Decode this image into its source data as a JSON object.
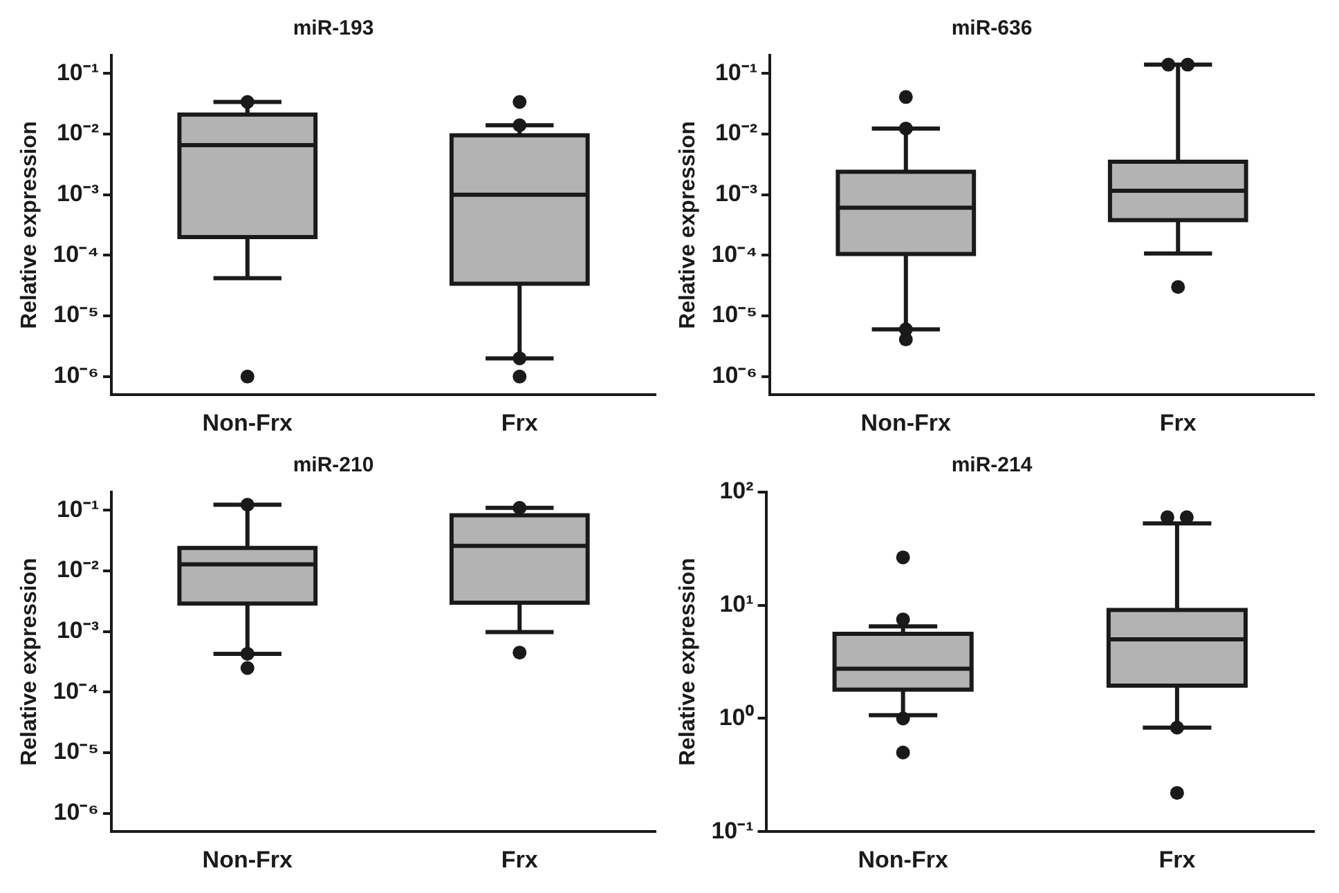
{
  "chart_data": [
    {
      "type": "box",
      "title": "miR-193",
      "ylabel": "Relative expression",
      "categories": [
        "Non-Frx",
        "Frx"
      ],
      "color": "#b3b3b3",
      "log": true,
      "ylim": [
        5e-07,
        0.2
      ],
      "yticks": [
        {
          "value": 0.1,
          "label": "10⁻¹"
        },
        {
          "value": 0.01,
          "label": "10⁻²"
        },
        {
          "value": 0.001,
          "label": "10⁻³"
        },
        {
          "value": 0.0001,
          "label": "10⁻⁴"
        },
        {
          "value": 1e-05,
          "label": "10⁻⁵"
        },
        {
          "value": 1e-06,
          "label": "10⁻⁶"
        }
      ],
      "boxes": [
        {
          "low": 4.2e-05,
          "q1": 0.0002,
          "median": 0.0066,
          "q3": 0.021,
          "high": 0.034,
          "outliers": [
            0.034,
            1e-06
          ]
        },
        {
          "low": 2e-06,
          "q1": 3.4e-05,
          "median": 0.001,
          "q3": 0.0096,
          "high": 0.014,
          "outliers": [
            0.034,
            0.014,
            2e-06,
            1e-06
          ]
        }
      ]
    },
    {
      "type": "box",
      "title": "miR-636",
      "ylabel": "Relative expression",
      "categories": [
        "Non-Frx",
        "Frx"
      ],
      "color": "#b3b3b3",
      "log": true,
      "ylim": [
        5e-07,
        0.2
      ],
      "yticks": [
        {
          "value": 0.1,
          "label": "10⁻¹"
        },
        {
          "value": 0.01,
          "label": "10⁻²"
        },
        {
          "value": 0.001,
          "label": "10⁻³"
        },
        {
          "value": 0.0001,
          "label": "10⁻⁴"
        },
        {
          "value": 1e-05,
          "label": "10⁻⁵"
        },
        {
          "value": 1e-06,
          "label": "10⁻⁶"
        }
      ],
      "boxes": [
        {
          "low": 6e-06,
          "q1": 0.000105,
          "median": 0.00061,
          "q3": 0.0024,
          "high": 0.0124,
          "outliers": [
            0.041,
            0.0124,
            6e-06,
            4.1e-06
          ]
        },
        {
          "low": 0.000107,
          "q1": 0.00038,
          "median": 0.00116,
          "q3": 0.0035,
          "high": 0.14,
          "outliers": [
            0.14,
            0.14,
            3e-05
          ]
        }
      ]
    },
    {
      "type": "box",
      "title": "miR-210",
      "ylabel": "Relative expression",
      "categories": [
        "Non-Frx",
        "Frx"
      ],
      "color": "#b3b3b3",
      "log": true,
      "ylim": [
        5e-07,
        0.2
      ],
      "yticks": [
        {
          "value": 0.1,
          "label": "10⁻¹"
        },
        {
          "value": 0.01,
          "label": "10⁻²"
        },
        {
          "value": 0.001,
          "label": "10⁻³"
        },
        {
          "value": 0.0001,
          "label": "10⁻⁴"
        },
        {
          "value": 1e-05,
          "label": "10⁻⁵"
        },
        {
          "value": 1e-06,
          "label": "10⁻⁶"
        }
      ],
      "boxes": [
        {
          "low": 0.00043,
          "q1": 0.0029,
          "median": 0.0129,
          "q3": 0.024,
          "high": 0.124,
          "outliers": [
            0.124,
            0.00043,
            0.00025
          ]
        },
        {
          "low": 0.00098,
          "q1": 0.003,
          "median": 0.026,
          "q3": 0.083,
          "high": 0.11,
          "outliers": [
            0.11,
            0.00045
          ]
        }
      ]
    },
    {
      "type": "box",
      "title": "miR-214",
      "ylabel": "Relative expression",
      "categories": [
        "Non-Frx",
        "Frx"
      ],
      "color": "#b3b3b3",
      "log": true,
      "ylim": [
        0.1,
        100
      ],
      "yticks": [
        {
          "value": 100,
          "label": "10²"
        },
        {
          "value": 10,
          "label": "10¹"
        },
        {
          "value": 1,
          "label": "10⁰"
        },
        {
          "value": 0.1,
          "label": "10⁻¹"
        }
      ],
      "boxes": [
        {
          "low": 1.07,
          "q1": 1.8,
          "median": 2.75,
          "q3": 5.6,
          "high": 6.5,
          "outliers": [
            26.5,
            7.5,
            1,
            0.5
          ]
        },
        {
          "low": 0.83,
          "q1": 1.95,
          "median": 5,
          "q3": 9.1,
          "high": 53,
          "outliers": [
            60,
            60,
            0.83,
            0.22
          ]
        }
      ]
    }
  ]
}
